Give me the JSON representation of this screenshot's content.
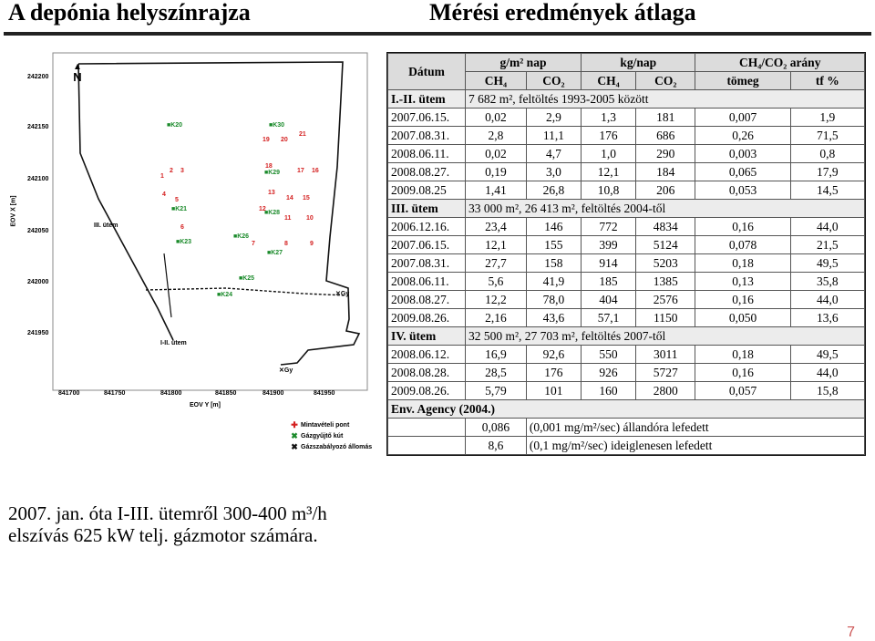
{
  "header": {
    "title_left": "A depónia helyszínrajza",
    "title_right": "Mérési eredmények átlaga"
  },
  "map": {
    "north_label": "N",
    "y_axis_label": "EOV X [m]",
    "x_axis_label": "EOV Y [m]",
    "y_ticks": [
      "242200",
      "242150",
      "242100",
      "242050",
      "242000",
      "241950"
    ],
    "x_ticks": [
      "841700",
      "841750",
      "841800",
      "841850",
      "841900",
      "841950"
    ],
    "zone_labels": [
      "III. ütem",
      "I-II. ütem"
    ],
    "point_labels": [
      "K20",
      "K30",
      "19",
      "20",
      "21",
      "1",
      "2",
      "3",
      "K29",
      "18",
      "17",
      "16",
      "4",
      "5",
      "13",
      "14",
      "15",
      "K21",
      "12",
      "11",
      "10",
      "6",
      "K28",
      "K26",
      "7",
      "8",
      "9",
      "K23",
      "K27",
      "K25",
      "K24",
      "Gy",
      "Gy"
    ],
    "legend": [
      {
        "icon": "red-cross-icon",
        "label": "Mintavételi pont",
        "color": "#d42020"
      },
      {
        "icon": "green-cross-icon",
        "label": "Gázgyűjtő kút",
        "color": "#1a8a2a"
      },
      {
        "icon": "black-cross-icon",
        "label": "Gázszabályozó állomás",
        "color": "#111111"
      }
    ]
  },
  "table": {
    "header1": {
      "date": "Dátum",
      "g_unit": "g/m² nap",
      "kg_unit": "kg/nap",
      "ratio": "CH₄/CO₂ arány"
    },
    "header2": [
      "CH₄",
      "CO₂",
      "CH₄",
      "CO₂",
      "tömeg",
      "tf %"
    ],
    "sections": [
      {
        "name": "I.-II. ütem",
        "note": "7 682 m², feltöltés 1993-2005 között",
        "rows": [
          [
            "2007.06.15.",
            "0,02",
            "2,9",
            "1,3",
            "181",
            "0,007",
            "1,9"
          ],
          [
            "2007.08.31.",
            "2,8",
            "11,1",
            "176",
            "686",
            "0,26",
            "71,5"
          ],
          [
            "2008.06.11.",
            "0,02",
            "4,7",
            "1,0",
            "290",
            "0,003",
            "0,8"
          ],
          [
            "2008.08.27.",
            "0,19",
            "3,0",
            "12,1",
            "184",
            "0,065",
            "17,9"
          ],
          [
            "2009.08.25",
            "1,41",
            "26,8",
            "10,8",
            "206",
            "0,053",
            "14,5"
          ]
        ]
      },
      {
        "name": "III. ütem",
        "note": "33 000 m², 26 413 m², feltöltés 2004-től",
        "rows": [
          [
            "2006.12.16.",
            "23,4",
            "146",
            "772",
            "4834",
            "0,16",
            "44,0"
          ],
          [
            "2007.06.15.",
            "12,1",
            "155",
            "399",
            "5124",
            "0,078",
            "21,5"
          ],
          [
            "2007.08.31.",
            "27,7",
            "158",
            "914",
            "5203",
            "0,18",
            "49,5"
          ],
          [
            "2008.06.11.",
            "5,6",
            "41,9",
            "185",
            "1385",
            "0,13",
            "35,8"
          ],
          [
            "2008.08.27.",
            "12,2",
            "78,0",
            "404",
            "2576",
            "0,16",
            "44,0"
          ],
          [
            "2009.08.26.",
            "2,16",
            "43,6",
            "57,1",
            "1150",
            "0,050",
            "13,6"
          ]
        ]
      },
      {
        "name": "IV. ütem",
        "note": "32 500 m², 27 703 m², feltöltés 2007-től",
        "rows": [
          [
            "2008.06.12.",
            "16,9",
            "92,6",
            "550",
            "3011",
            "0,18",
            "49,5"
          ],
          [
            "2008.08.28.",
            "28,5",
            "176",
            "926",
            "5727",
            "0,16",
            "44,0"
          ],
          [
            "2009.08.26.",
            "5,79",
            "101",
            "160",
            "2800",
            "0,057",
            "15,8"
          ]
        ]
      }
    ],
    "env_agency": {
      "name": "Env. Agency (2004.)",
      "rows": [
        {
          "value": "0,086",
          "note": "(0,001 mg/m²/sec) állandóra lefedett"
        },
        {
          "value": "8,6",
          "note": "(0,1 mg/m²/sec) ideiglenesen lefedett"
        }
      ]
    }
  },
  "caption": {
    "line1": "2007. jan. óta I-III. ütemről 300-400 m³/h",
    "line2": "elszívás 625 kW telj. gázmotor számára."
  },
  "page_number": "7"
}
